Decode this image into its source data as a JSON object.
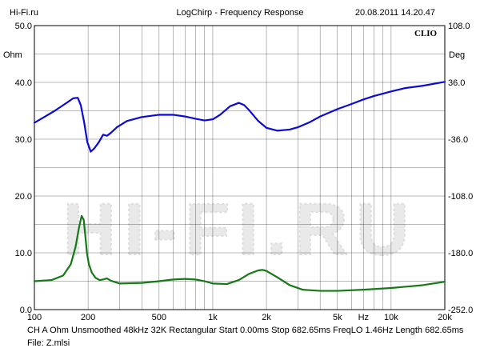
{
  "header": {
    "left": "Hi-Fi.ru",
    "center": "LogChirp - Frequency Response",
    "right": "20.08.2011 14.20.47"
  },
  "brand_label": "CLIO",
  "watermark": "HI-FI.RU",
  "footer": {
    "line1": "CH A   Ohm   Unsmoothed   48kHz   32K   Rectangular   Start 0.00ms    Stop 682.65ms    FreqLO 1.46Hz    Length 682.65ms",
    "line2": "File: Z.mlsi"
  },
  "chart_data": {
    "type": "line",
    "xscale": "log",
    "xlim": [
      100,
      20000
    ],
    "xticks": [
      {
        "value": 100,
        "label": "100"
      },
      {
        "value": 200,
        "label": "200"
      },
      {
        "value": 500,
        "label": "500"
      },
      {
        "value": 1000,
        "label": "1k"
      },
      {
        "value": 2000,
        "label": "2k"
      },
      {
        "value": 5000,
        "label": "5k"
      },
      {
        "value": 7000,
        "label": "Hz"
      },
      {
        "value": 10000,
        "label": "10k"
      },
      {
        "value": 20000,
        "label": "20k"
      }
    ],
    "ylim_left": [
      0,
      50
    ],
    "yticks_left": [
      "0.0",
      "10.0",
      "20.0",
      "30.0",
      "40.0",
      "50.0"
    ],
    "ylabel_left": "Ohm",
    "ylim_right": [
      -252,
      108
    ],
    "yticks_right": [
      "-252.0",
      "-180.0",
      "-108.0",
      "-36.0",
      "36.0",
      "108.0"
    ],
    "ylabel_right": "Deg",
    "grid": true,
    "colors": {
      "magnitude": "#0a0ad8",
      "phase": "#157a15",
      "grid": "#000000"
    },
    "series": [
      {
        "axis": "left",
        "color": "#0a0ad8",
        "x": [
          100,
          115,
          130,
          150,
          165,
          175,
          182,
          190,
          198,
          207,
          217,
          230,
          243,
          255,
          268,
          290,
          330,
          400,
          500,
          600,
          700,
          800,
          900,
          1000,
          1100,
          1250,
          1400,
          1500,
          1600,
          1800,
          2000,
          2300,
          2700,
          3000,
          3500,
          4000,
          5000,
          6000,
          7000,
          8000,
          10000,
          12000,
          15000,
          20000
        ],
        "y": [
          32.9,
          34.0,
          35.0,
          36.3,
          37.2,
          37.3,
          36.0,
          33.0,
          29.5,
          27.8,
          28.4,
          29.5,
          30.8,
          30.6,
          31.1,
          32.1,
          33.2,
          33.9,
          34.3,
          34.3,
          34.0,
          33.6,
          33.3,
          33.5,
          34.3,
          35.8,
          36.4,
          36.0,
          35.1,
          33.2,
          32.0,
          31.5,
          31.7,
          32.1,
          33.0,
          34.0,
          35.3,
          36.2,
          37.0,
          37.6,
          38.4,
          39.0,
          39.4,
          40.1
        ]
      },
      {
        "axis": "left",
        "color": "#157a15",
        "x": [
          100,
          125,
          145,
          160,
          170,
          178,
          184,
          189,
          193,
          197,
          202,
          210,
          220,
          232,
          243,
          255,
          268,
          300,
          400,
          500,
          600,
          700,
          800,
          900,
          1000,
          1200,
          1400,
          1600,
          1800,
          1900,
          2000,
          2300,
          2700,
          3200,
          4000,
          5000,
          7000,
          10000,
          15000,
          20000
        ],
        "y": [
          5.0,
          5.2,
          6.0,
          8.0,
          11.0,
          14.5,
          16.5,
          15.8,
          13.0,
          10.0,
          8.0,
          6.5,
          5.6,
          5.2,
          5.3,
          5.5,
          5.1,
          4.6,
          4.7,
          5.0,
          5.3,
          5.4,
          5.3,
          5.0,
          4.6,
          4.5,
          5.2,
          6.3,
          6.9,
          7.0,
          6.8,
          5.7,
          4.3,
          3.5,
          3.3,
          3.3,
          3.5,
          3.8,
          4.3,
          4.9
        ]
      }
    ]
  }
}
